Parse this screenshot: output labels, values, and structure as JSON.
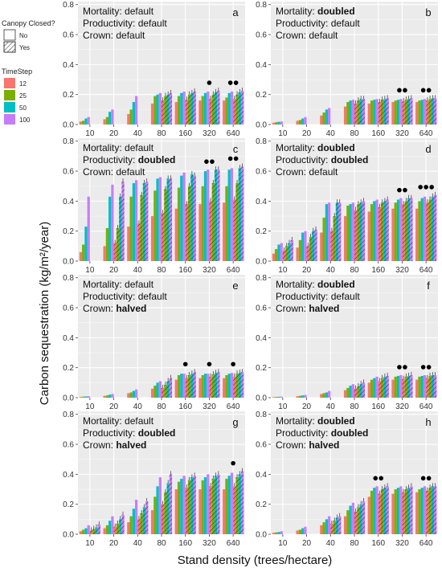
{
  "figure": {
    "ylabel": "Carbon sequestration (kg/m²/year)",
    "xlabel": "Stand density (trees/hectare)"
  },
  "legend": {
    "canopy_title": "Canopy Closed?",
    "canopy_items": [
      "No",
      "Yes"
    ],
    "timestep_title": "TimeStep",
    "timestep_items": [
      "12",
      "25",
      "50",
      "100"
    ],
    "colors": [
      "#f8766d",
      "#7cae00",
      "#00bfc4",
      "#c77cff"
    ]
  },
  "chart_data": [
    {
      "type": "bar",
      "panel": "a",
      "condition_lines": [
        {
          "prefix": "Mortality: ",
          "value": "default",
          "bold": false
        },
        {
          "prefix": "Productivity: ",
          "value": "default",
          "bold": false
        },
        {
          "prefix": "Crown: ",
          "value": "default",
          "bold": false
        }
      ],
      "categories": [
        "10",
        "20",
        "40",
        "80",
        "160",
        "320",
        "640"
      ],
      "yticks": [
        "0.0",
        "0.2",
        "0.4",
        "0.6",
        "0.8"
      ],
      "ylim": [
        0,
        0.82
      ],
      "no_closed": [
        [
          0.02,
          0.025,
          0.04,
          0.05
        ],
        [
          0.035,
          0.05,
          0.085,
          0.1
        ],
        [
          0.07,
          0.1,
          0.15,
          0.19
        ],
        [
          0.14,
          0.19,
          0.2,
          0.21
        ],
        [
          0.15,
          0.19,
          0.21,
          0.22
        ],
        [
          0.16,
          0.19,
          0.21,
          0.22
        ],
        [
          0.16,
          0.18,
          0.21,
          0.22
        ]
      ],
      "yes_closed": [
        null,
        null,
        null,
        [
          0.16,
          0.19,
          0.2,
          0.21
        ],
        [
          0.165,
          0.2,
          0.21,
          0.22
        ],
        [
          0.17,
          0.2,
          0.215,
          0.225
        ],
        [
          0.17,
          0.2,
          0.215,
          0.225
        ]
      ],
      "markers": [
        0,
        0,
        0,
        0,
        0,
        1,
        2
      ]
    },
    {
      "type": "bar",
      "panel": "b",
      "condition_lines": [
        {
          "prefix": "Mortality: ",
          "value": "doubled",
          "bold": true
        },
        {
          "prefix": "Productivity: ",
          "value": "default",
          "bold": false
        },
        {
          "prefix": "Crown: ",
          "value": "default",
          "bold": false
        }
      ],
      "categories": [
        "10",
        "20",
        "40",
        "80",
        "160",
        "320",
        "640"
      ],
      "yticks": [
        "0.0",
        "0.2",
        "0.4",
        "0.6",
        "0.8"
      ],
      "ylim": [
        0,
        0.82
      ],
      "no_closed": [
        [
          0.012,
          0.015,
          0.018,
          0.02
        ],
        [
          0.025,
          0.03,
          0.04,
          0.05
        ],
        [
          0.06,
          0.08,
          0.1,
          0.11
        ],
        [
          0.12,
          0.15,
          0.16,
          0.165
        ],
        [
          0.14,
          0.16,
          0.165,
          0.17
        ],
        [
          0.15,
          0.16,
          0.165,
          0.17
        ],
        [
          0.15,
          0.16,
          0.165,
          0.17
        ]
      ],
      "yes_closed": [
        null,
        null,
        null,
        [
          0.14,
          0.16,
          0.17,
          0.17
        ],
        [
          0.15,
          0.165,
          0.17,
          0.175
        ],
        [
          0.155,
          0.165,
          0.17,
          0.175
        ],
        [
          0.16,
          0.17,
          0.175,
          0.175
        ]
      ],
      "markers": [
        0,
        0,
        0,
        0,
        0,
        2,
        2
      ]
    },
    {
      "type": "bar",
      "panel": "c",
      "condition_lines": [
        {
          "prefix": "Mortality: ",
          "value": "default",
          "bold": false
        },
        {
          "prefix": "Productivity: ",
          "value": "doubled",
          "bold": true
        },
        {
          "prefix": "Crown: ",
          "value": "default",
          "bold": false
        }
      ],
      "categories": [
        "10",
        "20",
        "40",
        "80",
        "160",
        "320",
        "640"
      ],
      "yticks": [
        "0.0",
        "0.2",
        "0.4",
        "0.6",
        "0.8"
      ],
      "ylim": [
        0,
        0.82
      ],
      "no_closed": [
        [
          0.06,
          0.11,
          0.23,
          0.43
        ],
        [
          0.1,
          0.22,
          0.43,
          0.51
        ],
        [
          0.23,
          0.43,
          0.52,
          0.54
        ],
        [
          0.3,
          0.47,
          0.55,
          0.56
        ],
        [
          0.35,
          0.49,
          0.57,
          0.59
        ],
        [
          0.38,
          0.5,
          0.6,
          0.61
        ],
        [
          0.39,
          0.5,
          0.61,
          0.62
        ]
      ],
      "yes_closed": [
        null,
        [
          0.12,
          0.22,
          0.43,
          0.53
        ],
        [
          0.25,
          0.44,
          0.52,
          0.53
        ],
        [
          0.32,
          0.48,
          0.55,
          0.55
        ],
        [
          0.38,
          0.5,
          0.58,
          0.57
        ],
        [
          0.4,
          0.52,
          0.61,
          0.61
        ],
        [
          0.41,
          0.52,
          0.62,
          0.63
        ]
      ],
      "markers": [
        0,
        0,
        0,
        0,
        0,
        2,
        2
      ]
    },
    {
      "type": "bar",
      "panel": "d",
      "condition_lines": [
        {
          "prefix": "Mortality: ",
          "value": "doubled",
          "bold": true
        },
        {
          "prefix": "Productivity: ",
          "value": "doubled",
          "bold": true
        },
        {
          "prefix": "Crown: ",
          "value": "default",
          "bold": false
        }
      ],
      "categories": [
        "10",
        "20",
        "40",
        "80",
        "160",
        "320",
        "640"
      ],
      "yticks": [
        "0.0",
        "0.2",
        "0.4",
        "0.6",
        "0.8"
      ],
      "ylim": [
        0,
        0.82
      ],
      "no_closed": [
        [
          0.05,
          0.08,
          0.11,
          0.12
        ],
        [
          0.09,
          0.14,
          0.19,
          0.2
        ],
        [
          0.19,
          0.29,
          0.38,
          0.39
        ],
        [
          0.3,
          0.37,
          0.38,
          0.39
        ],
        [
          0.33,
          0.38,
          0.4,
          0.41
        ],
        [
          0.35,
          0.39,
          0.41,
          0.42
        ],
        [
          0.35,
          0.4,
          0.42,
          0.43
        ]
      ],
      "yes_closed": [
        [
          0.07,
          0.1,
          0.12,
          0.14
        ],
        [
          0.1,
          0.16,
          0.2,
          0.21
        ],
        [
          0.2,
          0.3,
          0.39,
          0.39
        ],
        [
          0.34,
          0.38,
          0.39,
          0.4
        ],
        [
          0.36,
          0.39,
          0.4,
          0.41
        ],
        [
          0.38,
          0.4,
          0.42,
          0.42
        ],
        [
          0.39,
          0.41,
          0.43,
          0.44
        ]
      ],
      "markers": [
        0,
        0,
        0,
        0,
        0,
        2,
        3
      ]
    },
    {
      "type": "bar",
      "panel": "e",
      "condition_lines": [
        {
          "prefix": "Mortality: ",
          "value": "default",
          "bold": false
        },
        {
          "prefix": "Productivity: ",
          "value": "default",
          "bold": false
        },
        {
          "prefix": "Crown: ",
          "value": "halved",
          "bold": true
        }
      ],
      "categories": [
        "10",
        "20",
        "40",
        "80",
        "160",
        "320",
        "640"
      ],
      "yticks": [
        "0.0",
        "0.2",
        "0.4",
        "0.6",
        "0.8"
      ],
      "ylim": [
        0,
        0.82
      ],
      "no_closed": [
        [
          0.005,
          0.007,
          0.008,
          0.01
        ],
        [
          0.012,
          0.015,
          0.02,
          0.025
        ],
        [
          0.03,
          0.035,
          0.045,
          0.055
        ],
        [
          0.06,
          0.08,
          0.1,
          0.11
        ],
        [
          0.12,
          0.15,
          0.16,
          0.16
        ],
        [
          0.13,
          0.15,
          0.16,
          0.16
        ],
        [
          0.13,
          0.15,
          0.16,
          0.165
        ]
      ],
      "yes_closed": [
        null,
        null,
        null,
        [
          0.065,
          0.085,
          0.11,
          0.13
        ],
        [
          0.13,
          0.15,
          0.16,
          0.17
        ],
        [
          0.14,
          0.155,
          0.165,
          0.17
        ],
        [
          0.14,
          0.16,
          0.165,
          0.17
        ]
      ],
      "markers": [
        0,
        0,
        0,
        0,
        1,
        1,
        1
      ]
    },
    {
      "type": "bar",
      "panel": "f",
      "condition_lines": [
        {
          "prefix": "Mortality: ",
          "value": "doubled",
          "bold": true
        },
        {
          "prefix": "Productivity: ",
          "value": "default",
          "bold": false
        },
        {
          "prefix": "Crown: ",
          "value": "halved",
          "bold": true
        }
      ],
      "categories": [
        "10",
        "20",
        "40",
        "80",
        "160",
        "320",
        "640"
      ],
      "yticks": [
        "0.0",
        "0.2",
        "0.4",
        "0.6",
        "0.8"
      ],
      "ylim": [
        0,
        0.82
      ],
      "no_closed": [
        [
          0.004,
          0.005,
          0.006,
          0.007
        ],
        [
          0.01,
          0.012,
          0.015,
          0.018
        ],
        [
          0.025,
          0.03,
          0.035,
          0.045
        ],
        [
          0.05,
          0.065,
          0.08,
          0.09
        ],
        [
          0.1,
          0.12,
          0.13,
          0.14
        ],
        [
          0.12,
          0.14,
          0.145,
          0.15
        ],
        [
          0.12,
          0.14,
          0.145,
          0.15
        ]
      ],
      "yes_closed": [
        null,
        null,
        null,
        [
          0.06,
          0.075,
          0.09,
          0.1
        ],
        [
          0.11,
          0.13,
          0.14,
          0.145
        ],
        [
          0.125,
          0.14,
          0.145,
          0.15
        ],
        [
          0.13,
          0.145,
          0.15,
          0.15
        ]
      ],
      "markers": [
        0,
        0,
        0,
        0,
        0,
        2,
        2
      ]
    },
    {
      "type": "bar",
      "panel": "g",
      "condition_lines": [
        {
          "prefix": "Mortality: ",
          "value": "default",
          "bold": false
        },
        {
          "prefix": "Productivity: ",
          "value": "doubled",
          "bold": true
        },
        {
          "prefix": "Crown: ",
          "value": "halved",
          "bold": true
        }
      ],
      "categories": [
        "10",
        "20",
        "40",
        "80",
        "160",
        "320",
        "640"
      ],
      "yticks": [
        "0.0",
        "0.2",
        "0.4",
        "0.6",
        "0.8"
      ],
      "ylim": [
        0,
        0.82
      ],
      "no_closed": [
        [
          0.02,
          0.03,
          0.04,
          0.06
        ],
        [
          0.04,
          0.06,
          0.09,
          0.12
        ],
        [
          0.08,
          0.12,
          0.17,
          0.23
        ],
        [
          0.16,
          0.25,
          0.32,
          0.38
        ],
        [
          0.3,
          0.35,
          0.37,
          0.39
        ],
        [
          0.3,
          0.36,
          0.38,
          0.4
        ],
        [
          0.3,
          0.37,
          0.39,
          0.41
        ]
      ],
      "yes_closed": [
        [
          0.025,
          0.035,
          0.045,
          0.065
        ],
        [
          0.05,
          0.07,
          0.1,
          0.13
        ],
        [
          0.1,
          0.14,
          0.18,
          0.22
        ],
        [
          0.2,
          0.28,
          0.34,
          0.4
        ],
        [
          0.31,
          0.36,
          0.38,
          0.39
        ],
        [
          0.32,
          0.37,
          0.39,
          0.4
        ],
        [
          0.32,
          0.38,
          0.4,
          0.42
        ]
      ],
      "markers": [
        0,
        0,
        0,
        0,
        0,
        0,
        1
      ]
    },
    {
      "type": "bar",
      "panel": "h",
      "condition_lines": [
        {
          "prefix": "Mortality: ",
          "value": "doubled",
          "bold": true
        },
        {
          "prefix": "Productivity: ",
          "value": "doubled",
          "bold": true
        },
        {
          "prefix": "Crown: ",
          "value": "halved",
          "bold": true
        }
      ],
      "categories": [
        "10",
        "20",
        "40",
        "80",
        "160",
        "320",
        "640"
      ],
      "yticks": [
        "0.0",
        "0.2",
        "0.4",
        "0.6",
        "0.8"
      ],
      "ylim": [
        0,
        0.82
      ],
      "no_closed": [
        [
          0.01,
          0.012,
          0.015,
          0.02
        ],
        [
          0.025,
          0.03,
          0.04,
          0.05
        ],
        [
          0.06,
          0.08,
          0.1,
          0.12
        ],
        [
          0.12,
          0.16,
          0.19,
          0.21
        ],
        [
          0.25,
          0.29,
          0.31,
          0.32
        ],
        [
          0.27,
          0.3,
          0.31,
          0.32
        ],
        [
          0.28,
          0.3,
          0.31,
          0.32
        ]
      ],
      "yes_closed": [
        null,
        null,
        [
          0.07,
          0.09,
          0.11,
          0.12
        ],
        [
          0.15,
          0.18,
          0.2,
          0.22
        ],
        [
          0.27,
          0.3,
          0.31,
          0.32
        ],
        [
          0.28,
          0.3,
          0.31,
          0.32
        ],
        [
          0.29,
          0.31,
          0.32,
          0.32
        ]
      ],
      "markers": [
        0,
        0,
        0,
        0,
        2,
        0,
        2
      ]
    }
  ]
}
